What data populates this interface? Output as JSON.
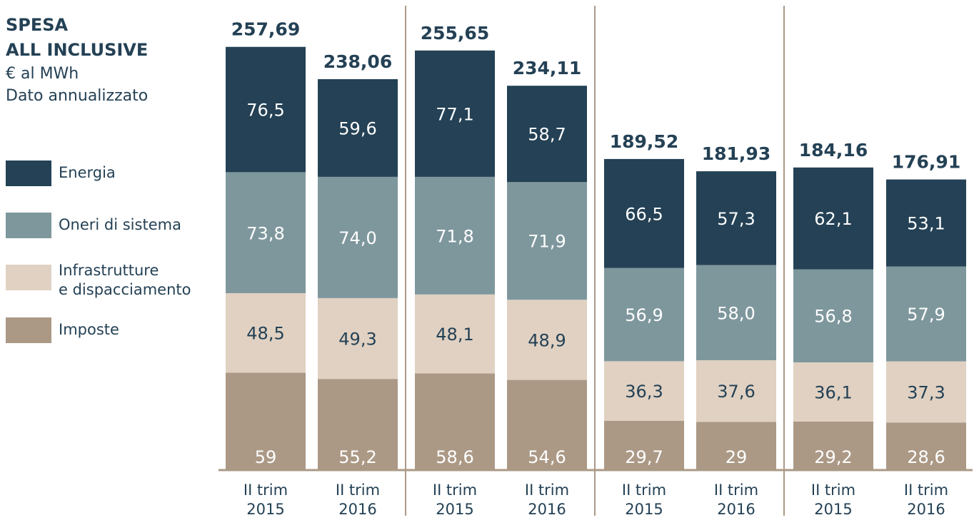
{
  "title": {
    "line1": "SPESA",
    "line2": "ALL INCLUSIVE",
    "unit": "€ al MWh",
    "note": "Dato annualizzato"
  },
  "colors": {
    "energia": "#244155",
    "oneri": "#7e979d",
    "infrastrutture": "#e0d1c2",
    "imposte": "#ab9986",
    "text_dark": "#244155",
    "divider": "#ab9986"
  },
  "legend": [
    {
      "key": "energia",
      "label": "Energia"
    },
    {
      "key": "oneri",
      "label": "Oneri di sistema"
    },
    {
      "key": "infrastrutture",
      "label_line1": "Infrastrutture",
      "label_line2": "e dispacciamento"
    },
    {
      "key": "imposte",
      "label": "Imposte"
    }
  ],
  "chart_data": {
    "type": "bar",
    "stacked": true,
    "grid": false,
    "legend_position": "left",
    "categories": [
      {
        "line1": "II trim",
        "line2": "2015"
      },
      {
        "line1": "II trim",
        "line2": "2016"
      },
      {
        "line1": "II trim",
        "line2": "2015"
      },
      {
        "line1": "II trim",
        "line2": "2016"
      },
      {
        "line1": "II trim",
        "line2": "2015"
      },
      {
        "line1": "II trim",
        "line2": "2016"
      },
      {
        "line1": "II trim",
        "line2": "2015"
      },
      {
        "line1": "II trim",
        "line2": "2016"
      }
    ],
    "series": [
      {
        "key": "imposte",
        "name": "Imposte",
        "values": [
          59,
          55.2,
          58.6,
          54.6,
          29.7,
          29,
          29.2,
          28.6
        ],
        "labels": [
          "59",
          "55,2",
          "58,6",
          "54,6",
          "29,7",
          "29",
          "29,2",
          "28,6"
        ]
      },
      {
        "key": "infrastrutture",
        "name": "Infrastrutture e dispacciamento",
        "values": [
          48.5,
          49.3,
          48.1,
          48.9,
          36.3,
          37.6,
          36.1,
          37.3
        ],
        "labels": [
          "48,5",
          "49,3",
          "48,1",
          "48,9",
          "36,3",
          "37,6",
          "36,1",
          "37,3"
        ]
      },
      {
        "key": "oneri",
        "name": "Oneri di sistema",
        "values": [
          73.8,
          74.0,
          71.8,
          71.9,
          56.9,
          58.0,
          56.8,
          57.9
        ],
        "labels": [
          "73,8",
          "74,0",
          "71,8",
          "71,9",
          "56,9",
          "58,0",
          "56,8",
          "57,9"
        ]
      },
      {
        "key": "energia",
        "name": "Energia",
        "values": [
          76.5,
          59.6,
          77.1,
          58.7,
          66.5,
          57.3,
          62.1,
          53.1
        ],
        "labels": [
          "76,5",
          "59,6",
          "77,1",
          "58,7",
          "66,5",
          "57,3",
          "62,1",
          "53,1"
        ]
      }
    ],
    "totals": [
      257.69,
      238.06,
      255.65,
      234.11,
      189.52,
      181.93,
      184.16,
      176.91
    ],
    "total_labels": [
      "257,69",
      "238,06",
      "255,65",
      "234,11",
      "189,52",
      "181,93",
      "184,16",
      "176,91"
    ],
    "ylim": [
      0,
      257.69
    ]
  }
}
